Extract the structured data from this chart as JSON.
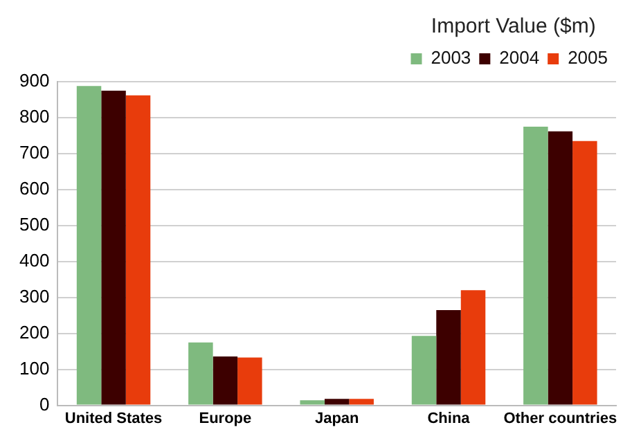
{
  "chart_data": {
    "type": "bar",
    "legend_title": "Import Value ($m)",
    "categories": [
      "United States",
      "Europe",
      "Japan",
      "China",
      "Other countries"
    ],
    "series": [
      {
        "name": "2003",
        "color": "#7fba7f",
        "values": [
          888,
          175,
          14,
          193,
          775
        ]
      },
      {
        "name": "2004",
        "color": "#3d0000",
        "values": [
          875,
          136,
          18,
          265,
          762
        ]
      },
      {
        "name": "2005",
        "color": "#e83c0c",
        "values": [
          862,
          133,
          18,
          320,
          735
        ]
      }
    ],
    "ylim": [
      0,
      900
    ],
    "yticks": [
      0,
      100,
      200,
      300,
      400,
      500,
      600,
      700,
      800,
      900
    ],
    "grid": "y",
    "legend": "top right"
  }
}
